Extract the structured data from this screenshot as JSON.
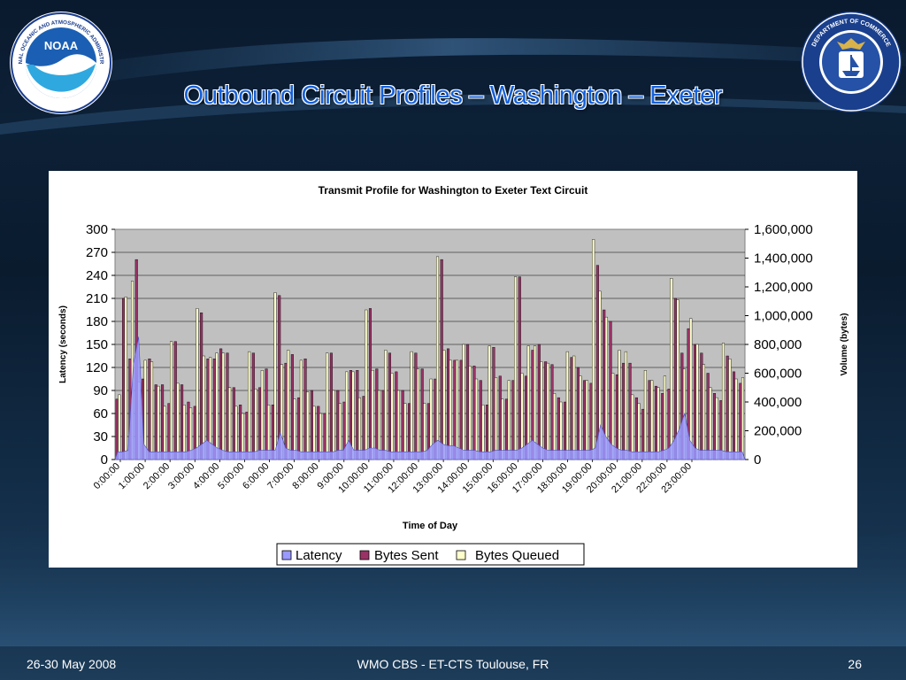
{
  "slide": {
    "title": "Outbound Circuit Profiles – Washington – Exeter",
    "footer_left": "26-30 May 2008",
    "footer_center": "WMO CBS - ET-CTS Toulouse, FR",
    "page_number": "26",
    "noaa_logo": {
      "ring_text": "NATIONAL OCEANIC AND ATMOSPHERIC ADMINISTRATION",
      "bottom_text": "U.S. DEPARTMENT OF COMMERCE",
      "center_text": "NOAA"
    },
    "doc_seal": {
      "ring_text": "DEPARTMENT OF COMMERCE",
      "bottom_text": "UNITED STATES OF AMERICA"
    }
  },
  "colors": {
    "latency": "#9999ff",
    "bytes_sent": "#993366",
    "bytes_queued": "#ffffcc",
    "plot_bg": "#c0c0c0",
    "title_blue": "#1560d8"
  },
  "chart_data": {
    "type": "bar",
    "title": "Transmit Profile for Washington to Exeter Text Circuit",
    "xlabel": "Time of Day",
    "ylabel": "Latency (seconds)",
    "y2label": "Volume (bytes)",
    "ylim": [
      0,
      300
    ],
    "y2lim": [
      0,
      1600000
    ],
    "yticks": [
      "0",
      "30",
      "60",
      "90",
      "120",
      "150",
      "180",
      "210",
      "240",
      "270",
      "300"
    ],
    "y2ticks": [
      "0",
      "200,000",
      "400,000",
      "600,000",
      "800,000",
      "1,000,000",
      "1,200,000",
      "1,400,000",
      "1,600,000"
    ],
    "xticks": [
      "0:00:00",
      "1:00:00",
      "2:00:00",
      "3:00:00",
      "4:00:00",
      "5:00:00",
      "6:00:00",
      "7:00:00",
      "8:00:00",
      "9:00:00",
      "10:00:00",
      "11:00:00",
      "12:00:00",
      "13:00:00",
      "14:00:00",
      "15:00:00",
      "16:00:00",
      "17:00:00",
      "18:00:00",
      "19:00:00",
      "20:00:00",
      "21:00:00",
      "22:00:00",
      "23:00:00"
    ],
    "grid": true,
    "legend_position": "bottom",
    "series": [
      {
        "name": "Latency",
        "type": "area",
        "axis": "left",
        "values": [
          10,
          10,
          12,
          125,
          160,
          20,
          10,
          10,
          10,
          10,
          10,
          10,
          10,
          10,
          12,
          15,
          20,
          25,
          20,
          15,
          12,
          10,
          10,
          10,
          10,
          10,
          10,
          12,
          12,
          12,
          12,
          35,
          15,
          12,
          12,
          10,
          10,
          10,
          10,
          10,
          10,
          10,
          12,
          12,
          25,
          12,
          12,
          12,
          15,
          15,
          12,
          12,
          10,
          10,
          10,
          10,
          10,
          10,
          10,
          12,
          20,
          25,
          20,
          18,
          18,
          15,
          12,
          12,
          12,
          10,
          10,
          10,
          12,
          12,
          12,
          12,
          12,
          15,
          20,
          25,
          20,
          15,
          12,
          12,
          12,
          12,
          12,
          12,
          12,
          12,
          12,
          15,
          45,
          30,
          20,
          15,
          12,
          12,
          10,
          10,
          10,
          10,
          10,
          10,
          12,
          15,
          25,
          40,
          60,
          25,
          15,
          12,
          12,
          12,
          12,
          12,
          10,
          10,
          10,
          10
        ]
      },
      {
        "name": "Bytes Sent",
        "type": "bar",
        "axis": "right",
        "values": [
          420000,
          1120000,
          700000,
          1390000,
          560000,
          700000,
          520000,
          520000,
          390000,
          820000,
          520000,
          400000,
          370000,
          1020000,
          700000,
          700000,
          770000,
          740000,
          500000,
          380000,
          330000,
          740000,
          500000,
          630000,
          380000,
          1140000,
          670000,
          730000,
          430000,
          700000,
          480000,
          370000,
          320000,
          740000,
          480000,
          400000,
          620000,
          620000,
          440000,
          1050000,
          630000,
          480000,
          740000,
          610000,
          480000,
          390000,
          740000,
          630000,
          390000,
          560000,
          1390000,
          770000,
          690000,
          690000,
          800000,
          650000,
          550000,
          380000,
          780000,
          580000,
          420000,
          550000,
          1270000,
          580000,
          760000,
          800000,
          680000,
          660000,
          430000,
          400000,
          710000,
          640000,
          550000,
          530000,
          1350000,
          1040000,
          960000,
          590000,
          670000,
          670000,
          430000,
          350000,
          550000,
          510000,
          460000,
          490000,
          1120000,
          740000,
          910000,
          800000,
          740000,
          600000,
          460000,
          410000,
          720000,
          610000,
          530000
        ]
      },
      {
        "name": "Bytes Queued",
        "type": "bar",
        "axis": "right",
        "values": [
          450000,
          1130000,
          1240000,
          540000,
          690000,
          680000,
          510000,
          370000,
          820000,
          530000,
          380000,
          360000,
          1050000,
          720000,
          710000,
          740000,
          740000,
          500000,
          370000,
          320000,
          750000,
          490000,
          620000,
          380000,
          1160000,
          660000,
          760000,
          420000,
          690000,
          470000,
          370000,
          320000,
          740000,
          480000,
          390000,
          610000,
          610000,
          430000,
          1040000,
          620000,
          480000,
          760000,
          600000,
          480000,
          390000,
          750000,
          630000,
          390000,
          560000,
          1410000,
          760000,
          690000,
          690000,
          800000,
          650000,
          560000,
          380000,
          790000,
          570000,
          420000,
          550000,
          1270000,
          600000,
          790000,
          790000,
          680000,
          670000,
          460000,
          400000,
          750000,
          720000,
          580000,
          550000,
          1530000,
          1170000,
          990000,
          600000,
          760000,
          750000,
          450000,
          390000,
          620000,
          550000,
          500000,
          580000,
          1260000,
          1110000,
          630000,
          980000,
          800000,
          660000,
          500000,
          430000,
          810000,
          700000,
          560000,
          570000
        ]
      }
    ]
  }
}
